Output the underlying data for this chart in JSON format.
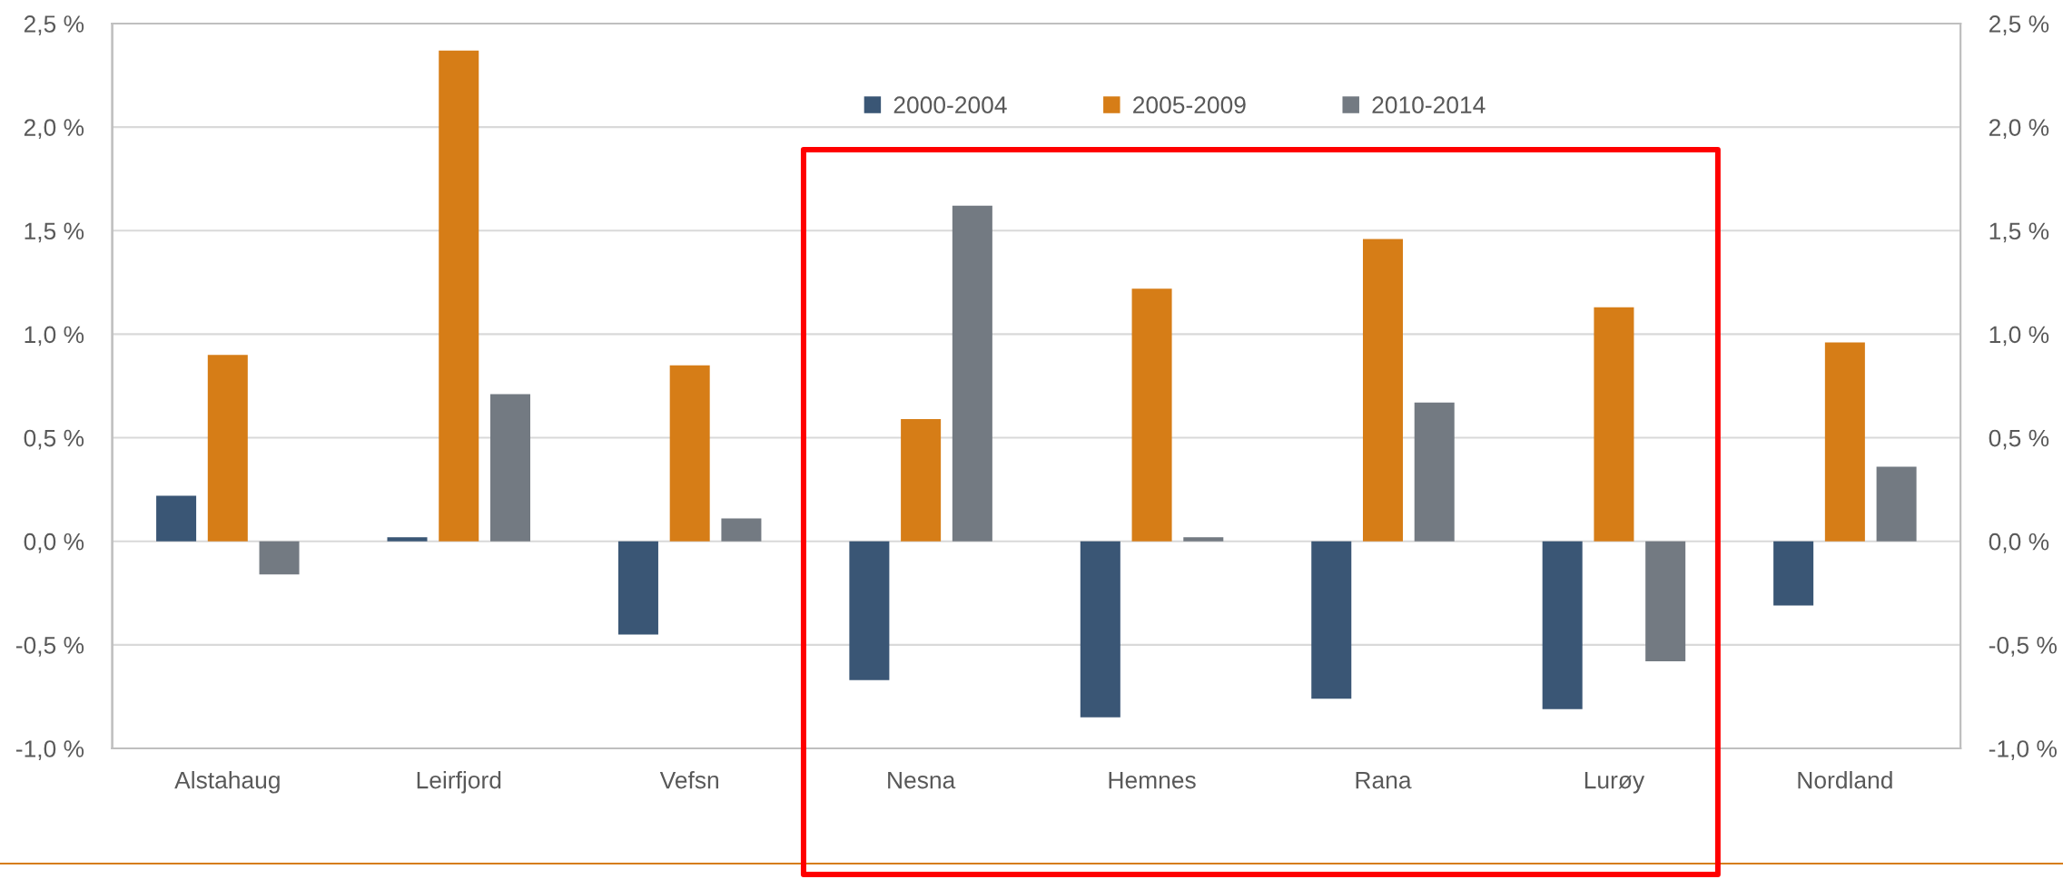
{
  "chart_data": {
    "type": "bar",
    "categories": [
      "Alstahaug",
      "Leirfjord",
      "Vefsn",
      "Nesna",
      "Hemnes",
      "Rana",
      "Lurøy",
      "Nordland"
    ],
    "series": [
      {
        "name": "2000-2004",
        "color": "#3a5675",
        "values": [
          0.22,
          0.02,
          -0.45,
          -0.67,
          -0.85,
          -0.76,
          -0.81,
          -0.31
        ]
      },
      {
        "name": "2005-2009",
        "color": "#d67d17",
        "values": [
          0.9,
          2.37,
          0.85,
          0.59,
          1.22,
          1.46,
          1.13,
          0.96
        ]
      },
      {
        "name": "2010-2014",
        "color": "#737a82",
        "values": [
          -0.16,
          0.71,
          0.11,
          1.62,
          0.02,
          0.67,
          -0.58,
          0.36
        ]
      }
    ],
    "ylim": [
      -1.0,
      2.5
    ],
    "yticks": [
      {
        "value": -1.0,
        "label": "-1,0 %"
      },
      {
        "value": -0.5,
        "label": "-0,5 %"
      },
      {
        "value": 0.0,
        "label": "0,0 %"
      },
      {
        "value": 0.5,
        "label": "0,5 %"
      },
      {
        "value": 1.0,
        "label": "1,0 %"
      },
      {
        "value": 1.5,
        "label": "1,5 %"
      },
      {
        "value": 2.0,
        "label": "2,0 %"
      },
      {
        "value": 2.5,
        "label": "2,5 %"
      }
    ],
    "y2lim": [
      -1.0,
      2.5
    ],
    "y2ticks": [
      {
        "value": -1.0,
        "label": "-1,0 %"
      },
      {
        "value": -0.5,
        "label": "-0,5 %"
      },
      {
        "value": 0.0,
        "label": "0,0 %"
      },
      {
        "value": 0.5,
        "label": "0,5 %"
      },
      {
        "value": 1.0,
        "label": "1,0 %"
      },
      {
        "value": 1.5,
        "label": "1,5 %"
      },
      {
        "value": 2.0,
        "label": "2,0 %"
      },
      {
        "value": 2.5,
        "label": "2,5 %"
      }
    ],
    "grid": "y",
    "legend": "top"
  }
}
